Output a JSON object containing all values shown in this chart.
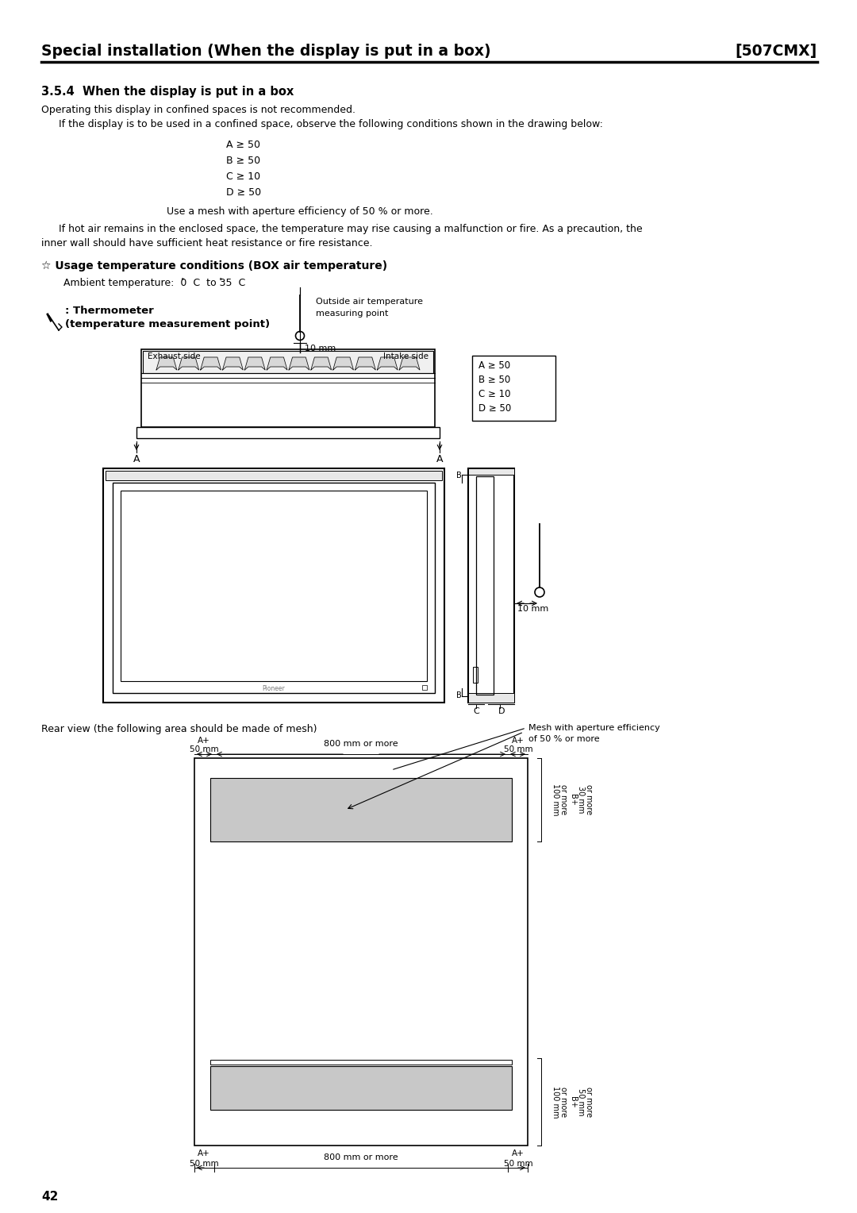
{
  "page_title_left": "Special installation (When the display is put in a box)",
  "page_title_right": "[507CMX]",
  "section_title": "3.5.4  When the display is put in a box",
  "para1": "Operating this display in confined spaces is not recommended.",
  "para2": "  If the display is to be used in a confined space, observe the following conditions shown in the drawing below:",
  "conditions": [
    "A ≥ 50",
    "B ≥ 50",
    "C ≥ 10",
    "D ≥ 50"
  ],
  "mesh_note": "Use a mesh with aperture efficiency of 50 % or more.",
  "para3a": "  If hot air remains in the enclosed space, the temperature may rise causing a malfunction or fire. As a precaution, the",
  "para3b": "inner wall should have sufficient heat resistance or fire resistance.",
  "usage_temp_title": "☆ Usage temperature conditions (BOX air temperature)",
  "ambient_temp": "Ambient temperature:  0  C  to 35  C",
  "thermo_label1": ": Thermometer",
  "thermo_label2": "(temperature measurement point)",
  "outside_air_label1": "Outside air temperature",
  "outside_air_label2": "measuring point",
  "ten_mm": "10 mm",
  "exhaust_side": "Exhaust side",
  "intake_side": "Intake side",
  "box_conditions": [
    "A ≥ 50",
    "B ≥ 50",
    "C ≥ 10",
    "D ≥ 50"
  ],
  "rear_view_label": "Rear view (the following area should be made of mesh)",
  "mesh_efficiency_label1": "Mesh with aperture efficiency",
  "mesh_efficiency_label2": "of 50 % or more",
  "page_number": "42",
  "bg_color": "#ffffff",
  "gray_fill": "#c8c8c8",
  "pioneer_text": "Pioneer"
}
